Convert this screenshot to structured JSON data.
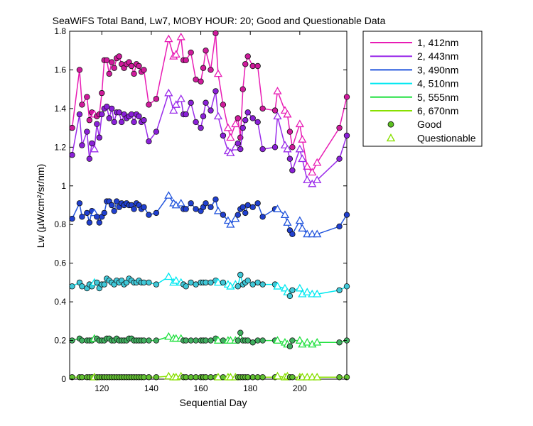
{
  "chart_data": {
    "type": "line",
    "title": "SeaWiFS Total Band,  Lw7, MOBY HOUR: 20;  Good and Questionable Data",
    "xlabel": "Sequential Day",
    "ylabel": "Lw (µW/cm²/sr/nm)",
    "xlim": [
      107,
      219
    ],
    "ylim": [
      0,
      1.8
    ],
    "xticks": [
      120,
      140,
      160,
      180,
      200
    ],
    "yticks": [
      0,
      0.2,
      0.4,
      0.6,
      0.8,
      1,
      1.2,
      1.4,
      1.6,
      1.8
    ],
    "grid": false,
    "legend_position": "outside-right",
    "legend_marker_labels": {
      "good": "Good",
      "questionable": "Questionable"
    },
    "x": [
      108,
      111,
      112,
      114,
      115,
      116,
      117,
      118,
      119,
      120,
      121,
      122,
      123,
      124,
      125,
      126,
      127,
      128,
      129,
      130,
      131,
      132,
      133,
      134,
      135,
      136,
      137,
      139,
      142,
      147,
      149,
      150,
      152,
      153,
      154,
      156,
      158,
      160,
      161,
      162,
      164,
      166,
      167,
      169,
      171,
      172,
      174,
      175,
      176,
      177,
      178,
      179,
      181,
      183,
      185,
      190,
      191,
      194,
      195,
      196,
      197,
      200,
      201,
      203,
      205,
      207,
      216,
      219
    ],
    "quality": [
      "good",
      "good",
      "good",
      "good",
      "good",
      "good",
      "questionable",
      "good",
      "good",
      "good",
      "good",
      "good",
      "good",
      "good",
      "good",
      "good",
      "good",
      "good",
      "good",
      "good",
      "good",
      "good",
      "good",
      "good",
      "good",
      "good",
      "good",
      "good",
      "good",
      "questionable",
      "questionable",
      "questionable",
      "questionable",
      "good",
      "good",
      "good",
      "good",
      "good",
      "good",
      "good",
      "good",
      "good",
      "questionable",
      "good",
      "questionable",
      "questionable",
      "questionable",
      "good",
      "good",
      "good",
      "good",
      "good",
      "good",
      "good",
      "good",
      "good",
      "questionable",
      "questionable",
      "questionable",
      "good",
      "good",
      "questionable",
      "questionable",
      "questionable",
      "questionable",
      "questionable",
      "good",
      "good"
    ],
    "series": [
      {
        "name": "1, 412nm",
        "color": "#e81cb4",
        "marker_color": "#d01a9c",
        "values": [
          1.3,
          1.6,
          1.42,
          1.46,
          1.34,
          1.38,
          1.37,
          1.36,
          1.37,
          1.48,
          1.65,
          1.65,
          1.58,
          1.64,
          1.61,
          1.66,
          1.67,
          1.63,
          1.61,
          1.63,
          1.64,
          1.62,
          1.58,
          1.63,
          1.62,
          1.59,
          1.6,
          1.42,
          1.45,
          1.76,
          1.67,
          1.68,
          1.77,
          1.65,
          1.65,
          1.69,
          1.55,
          1.54,
          1.61,
          1.7,
          1.6,
          1.79,
          1.58,
          1.42,
          1.3,
          1.25,
          1.32,
          1.35,
          1.25,
          1.5,
          1.63,
          1.67,
          1.62,
          1.62,
          1.4,
          1.39,
          1.49,
          1.39,
          1.37,
          1.28,
          1.2,
          1.32,
          1.24,
          1.1,
          1.07,
          1.12,
          1.3,
          1.46
        ]
      },
      {
        "name": "2, 443nm",
        "color": "#9a2bea",
        "marker_color": "#8a20d8",
        "values": [
          1.16,
          1.37,
          1.21,
          1.28,
          1.14,
          1.22,
          1.19,
          1.32,
          1.25,
          1.37,
          1.4,
          1.41,
          1.35,
          1.4,
          1.33,
          1.38,
          1.38,
          1.33,
          1.37,
          1.35,
          1.36,
          1.37,
          1.33,
          1.37,
          1.36,
          1.33,
          1.34,
          1.23,
          1.28,
          1.48,
          1.39,
          1.42,
          1.45,
          1.37,
          1.37,
          1.43,
          1.33,
          1.3,
          1.36,
          1.43,
          1.39,
          1.49,
          1.36,
          1.26,
          1.18,
          1.17,
          1.2,
          1.22,
          1.19,
          1.3,
          1.34,
          1.38,
          1.35,
          1.33,
          1.19,
          1.2,
          1.36,
          1.21,
          1.19,
          1.14,
          1.08,
          1.19,
          1.14,
          1.03,
          1.01,
          1.03,
          1.14,
          1.26
        ]
      },
      {
        "name": "3, 490nm",
        "color": "#2255dd",
        "marker_color": "#2040d0",
        "values": [
          0.83,
          0.91,
          0.84,
          0.86,
          0.81,
          0.87,
          0.86,
          0.84,
          0.81,
          0.84,
          0.86,
          0.92,
          0.92,
          0.9,
          0.87,
          0.92,
          0.89,
          0.91,
          0.9,
          0.91,
          0.9,
          0.9,
          0.88,
          0.91,
          0.9,
          0.88,
          0.89,
          0.85,
          0.86,
          0.95,
          0.91,
          0.9,
          0.91,
          0.88,
          0.88,
          0.91,
          0.88,
          0.87,
          0.89,
          0.91,
          0.89,
          0.93,
          0.87,
          0.85,
          0.82,
          0.8,
          0.83,
          0.85,
          0.88,
          0.89,
          0.86,
          0.9,
          0.89,
          0.91,
          0.84,
          0.88,
          0.88,
          0.85,
          0.81,
          0.77,
          0.75,
          0.82,
          0.78,
          0.75,
          0.75,
          0.75,
          0.79,
          0.85
        ]
      },
      {
        "name": "4, 510nm",
        "color": "#00e8f0",
        "marker_color": "#40c8d8",
        "values": [
          0.48,
          0.5,
          0.48,
          0.47,
          0.49,
          0.48,
          0.5,
          0.5,
          0.47,
          0.49,
          0.49,
          0.52,
          0.51,
          0.5,
          0.49,
          0.51,
          0.5,
          0.51,
          0.49,
          0.5,
          0.52,
          0.51,
          0.5,
          0.5,
          0.51,
          0.5,
          0.5,
          0.5,
          0.49,
          0.53,
          0.5,
          0.51,
          0.5,
          0.49,
          0.48,
          0.5,
          0.49,
          0.5,
          0.5,
          0.5,
          0.5,
          0.51,
          0.5,
          0.5,
          0.49,
          0.48,
          0.49,
          0.48,
          0.54,
          0.49,
          0.5,
          0.51,
          0.49,
          0.5,
          0.49,
          0.49,
          0.48,
          0.47,
          0.45,
          0.43,
          0.46,
          0.47,
          0.44,
          0.45,
          0.44,
          0.44,
          0.46,
          0.48
        ]
      },
      {
        "name": "5, 555nm",
        "color": "#22e040",
        "marker_color": "#40b060",
        "values": [
          0.2,
          0.21,
          0.2,
          0.2,
          0.2,
          0.2,
          0.21,
          0.21,
          0.2,
          0.2,
          0.2,
          0.21,
          0.21,
          0.2,
          0.2,
          0.21,
          0.2,
          0.2,
          0.2,
          0.2,
          0.21,
          0.21,
          0.2,
          0.2,
          0.2,
          0.2,
          0.2,
          0.2,
          0.2,
          0.22,
          0.21,
          0.21,
          0.21,
          0.2,
          0.2,
          0.2,
          0.2,
          0.2,
          0.2,
          0.2,
          0.2,
          0.21,
          0.2,
          0.2,
          0.2,
          0.2,
          0.2,
          0.2,
          0.24,
          0.2,
          0.2,
          0.2,
          0.19,
          0.2,
          0.2,
          0.2,
          0.2,
          0.19,
          0.18,
          0.17,
          0.2,
          0.2,
          0.18,
          0.19,
          0.18,
          0.19,
          0.19,
          0.2
        ]
      },
      {
        "name": "6, 670nm",
        "color": "#88e000",
        "marker_color": "#60c030",
        "values": [
          0.01,
          0.01,
          0.01,
          0.01,
          0.01,
          0.01,
          0.01,
          0.01,
          0.01,
          0.01,
          0.01,
          0.01,
          0.01,
          0.01,
          0.01,
          0.01,
          0.01,
          0.01,
          0.01,
          0.01,
          0.01,
          0.01,
          0.01,
          0.01,
          0.01,
          0.01,
          0.01,
          0.01,
          0.01,
          0.015,
          0.01,
          0.01,
          0.015,
          0.01,
          0.01,
          0.01,
          0.01,
          0.01,
          0.01,
          0.01,
          0.01,
          0.01,
          0.01,
          0.01,
          0.01,
          0.01,
          0.01,
          0.01,
          0.01,
          0.01,
          0.01,
          0.01,
          0.01,
          0.01,
          0.01,
          0.01,
          0.015,
          0.01,
          0.015,
          0.01,
          0.01,
          0.01,
          0.01,
          0.01,
          0.01,
          0.01,
          0.01,
          0.01
        ]
      }
    ]
  }
}
